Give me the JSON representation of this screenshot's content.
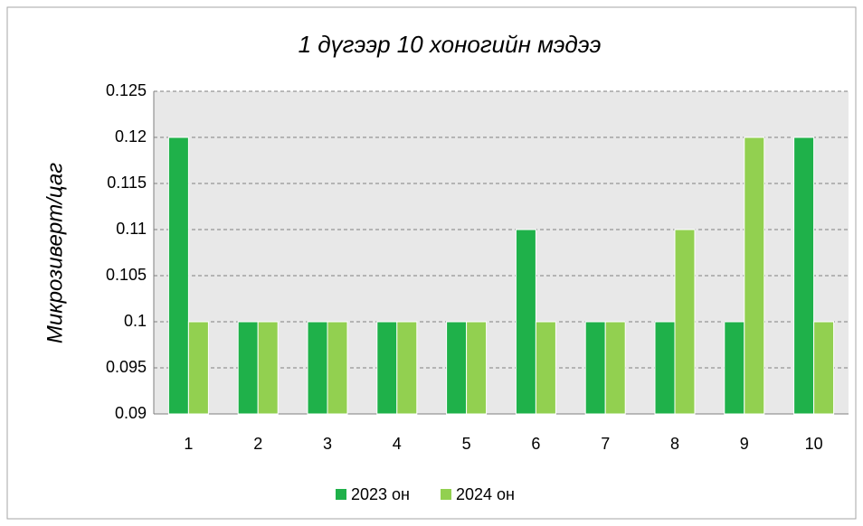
{
  "chart_data": {
    "type": "bar",
    "title": "1 дүгээр 10 хоногийн мэдээ",
    "y_label": "Микрозиверт/цаг",
    "categories": [
      "1",
      "2",
      "3",
      "4",
      "5",
      "6",
      "7",
      "8",
      "9",
      "10"
    ],
    "series": [
      {
        "name": "2023 он",
        "color": "#1fb14a",
        "values": [
          0.12,
          0.1,
          0.1,
          0.1,
          0.1,
          0.11,
          0.1,
          0.1,
          0.1,
          0.12
        ]
      },
      {
        "name": "2024 он",
        "color": "#92d050",
        "values": [
          0.1,
          0.1,
          0.1,
          0.1,
          0.1,
          0.1,
          0.1,
          0.11,
          0.12,
          0.1
        ]
      }
    ],
    "ylim": [
      0.09,
      0.125
    ],
    "yticks": [
      0.09,
      0.095,
      0.1,
      0.105,
      0.11,
      0.115,
      0.12,
      0.125
    ],
    "grid": true,
    "legend": "bottom"
  }
}
